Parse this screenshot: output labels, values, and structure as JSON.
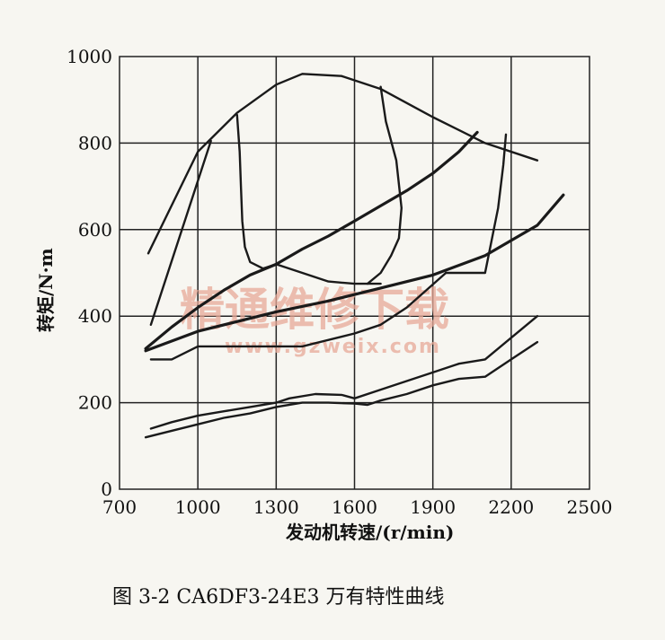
{
  "chart_data": {
    "type": "line",
    "xlabel": "发动机转速/(r/min)",
    "ylabel": "转矩/N·m",
    "xlim": [
      700,
      2500
    ],
    "ylim": [
      0,
      1000
    ],
    "xticks": [
      "700",
      "1000",
      "1300",
      "1600",
      "1900",
      "2200",
      "2500"
    ],
    "yticks": [
      "0",
      "200",
      "400",
      "600",
      "800",
      "1000"
    ],
    "grid": true,
    "series": [
      {
        "x": [
          810,
          1000,
          1150,
          1300,
          1400,
          1550,
          1700,
          1900,
          2100,
          2300
        ],
        "y": [
          545,
          780,
          870,
          935,
          960,
          955,
          925,
          860,
          800,
          760
        ]
      },
      {
        "x": [
          820,
          950,
          1050
        ],
        "y": [
          380,
          620,
          805
        ]
      },
      {
        "x": [
          800,
          900,
          1000,
          1100,
          1200,
          1300,
          1400,
          1500,
          1600,
          1700,
          1800,
          1900,
          2000,
          2070
        ],
        "y": [
          325,
          375,
          420,
          460,
          495,
          520,
          555,
          585,
          620,
          655,
          690,
          730,
          780,
          825
        ]
      },
      {
        "x": [
          800,
          1000,
          1300,
          1500,
          1700,
          1900,
          2100,
          2300,
          2400
        ],
        "y": [
          320,
          365,
          410,
          435,
          465,
          495,
          540,
          610,
          680
        ]
      },
      {
        "x": [
          820,
          900,
          1000,
          1200,
          1400,
          1600,
          1700,
          1800,
          1950
        ],
        "y": [
          300,
          300,
          330,
          330,
          330,
          360,
          380,
          420,
          500
        ]
      },
      {
        "x": [
          1150,
          1160,
          1165,
          1170,
          1180,
          1200,
          1250,
          1300,
          1400,
          1500,
          1600,
          1700
        ],
        "y": [
          865,
          780,
          700,
          620,
          560,
          525,
          510,
          520,
          500,
          480,
          475,
          475
        ]
      },
      {
        "x": [
          1700,
          1720,
          1760,
          1780,
          1770,
          1740,
          1700,
          1650
        ],
        "y": [
          930,
          850,
          760,
          650,
          580,
          540,
          500,
          475
        ]
      },
      {
        "x": [
          1950,
          2050,
          2100,
          2150,
          2170,
          2180
        ],
        "y": [
          500,
          500,
          500,
          650,
          750,
          820
        ]
      },
      {
        "x": [
          820,
          900,
          1000,
          1100,
          1200,
          1300,
          1350,
          1450,
          1550,
          1600,
          1700,
          1800,
          1900,
          2000,
          2100,
          2200,
          2300
        ],
        "y": [
          140,
          155,
          170,
          180,
          190,
          200,
          210,
          220,
          218,
          210,
          230,
          250,
          270,
          290,
          300,
          350,
          400
        ]
      },
      {
        "x": [
          800,
          900,
          1000,
          1100,
          1200,
          1300,
          1400,
          1500,
          1600,
          1650,
          1700,
          1800,
          1900,
          2000,
          2100,
          2200,
          2300
        ],
        "y": [
          120,
          135,
          150,
          165,
          175,
          190,
          200,
          200,
          198,
          195,
          205,
          220,
          240,
          255,
          260,
          300,
          340
        ]
      }
    ]
  },
  "caption": "图 3-2   CA6DF3-24E3 万有特性曲线",
  "watermark": {
    "text_cn": "精通维修下载",
    "text_url": "www.gzweix.com",
    "color": "#e8a998"
  },
  "colors": {
    "line": "#1a1a1a",
    "background": "#f7f6f1"
  }
}
